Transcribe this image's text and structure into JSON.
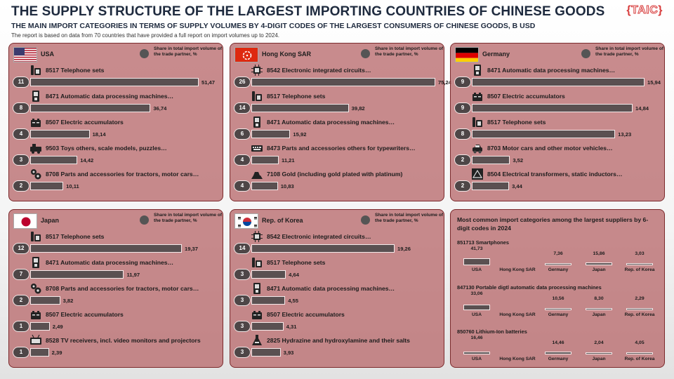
{
  "header": {
    "title": "THE SUPPLY STRUCTURE OF THE LARGEST IMPORTING COUNTRIES OF CHINESE GOODS",
    "subtitle": "THE MAIN IMPORT CATEGORIES IN TERMS OF SUPPLY VOLUMES BY 4-DIGIT CODES OF THE LARGEST CONSUMERS OF CHINESE GOODS, B USD",
    "note": "The report is based on data from 70 countries that have provided a full report on import volumes up to 2024.",
    "logo_left": "{",
    "logo_text": "TAIC",
    "logo_right": "}"
  },
  "legend_text": "Share in total import volume of the trade partner, %",
  "colors": {
    "panel": "#BA6E70",
    "bar": "#5A5051",
    "badge": "#4E4647",
    "title": "#1E2A3E",
    "logo": "#D73A3A"
  },
  "chart_data": [
    {
      "type": "bar",
      "country": "USA",
      "flag": "usa-flag-icon",
      "categories": [
        "8517 Telephone sets",
        "8471 Automatic data processing machines…",
        "8507 Electric accumulators",
        "9503 Toys others, scale models, puzzles…",
        "8708 Parts and accessories for tractors, motor cars…"
      ],
      "values": [
        51.47,
        36.74,
        18.14,
        14.42,
        10.11
      ],
      "labels": [
        "51,47",
        "36,74",
        "18,14",
        "14,42",
        "10,11"
      ],
      "share": [
        "11",
        "8",
        "4",
        "3",
        "2"
      ],
      "icons": [
        "telephone-icon",
        "computer-icon",
        "battery-icon",
        "toys-icon",
        "gears-icon"
      ]
    },
    {
      "type": "bar",
      "country": "Hong Kong SAR",
      "flag": "hongkong-flag-icon",
      "categories": [
        "8542 Electronic integrated circuits…",
        "8517 Telephone sets",
        "8471 Automatic data processing machines…",
        "8473 Parts and accessories others for typewriters…",
        "7108 Gold (including gold plated with platinum)"
      ],
      "values": [
        75.24,
        39.82,
        15.92,
        11.21,
        10.83
      ],
      "labels": [
        "75,24",
        "39,82",
        "15,92",
        "11,21",
        "10,83"
      ],
      "share": [
        "26",
        "14",
        "6",
        "4",
        "4"
      ],
      "icons": [
        "chip-icon",
        "telephone-icon",
        "computer-icon",
        "keyboard-icon",
        "gold-bars-icon"
      ]
    },
    {
      "type": "bar",
      "country": "Germany",
      "flag": "germany-flag-icon",
      "categories": [
        "8471 Automatic data processing machines…",
        "8507 Electric accumulators",
        "8517 Telephone sets",
        "8703 Motor cars and other motor vehicles…",
        "8504 Electrical transformers, static inductors…"
      ],
      "values": [
        15.94,
        14.84,
        13.23,
        3.52,
        3.44
      ],
      "labels": [
        "15,94",
        "14,84",
        "13,23",
        "3,52",
        "3,44"
      ],
      "share": [
        "9",
        "9",
        "8",
        "2",
        "2"
      ],
      "icons": [
        "computer-icon",
        "battery-icon",
        "telephone-icon",
        "car-icon",
        "transformer-icon"
      ]
    },
    {
      "type": "bar",
      "country": "Japan",
      "flag": "japan-flag-icon",
      "categories": [
        "8517 Telephone sets",
        "8471 Automatic data processing machines…",
        "8708 Parts and accessories for tractors, motor cars…",
        "8507 Electric accumulators",
        "8528 TV receivers, incl. video monitors and projectors"
      ],
      "values": [
        19.37,
        11.97,
        3.82,
        2.49,
        2.39
      ],
      "labels": [
        "19,37",
        "11,97",
        "3,82",
        "2,49",
        "2,39"
      ],
      "share": [
        "12",
        "7",
        "2",
        "1",
        "1"
      ],
      "icons": [
        "telephone-icon",
        "computer-icon",
        "gears-icon",
        "battery-icon",
        "tv-icon"
      ]
    },
    {
      "type": "bar",
      "country": "Rep. of Korea",
      "flag": "korea-flag-icon",
      "categories": [
        "8542 Electronic integrated circuits…",
        "8517 Telephone sets",
        "8471 Automatic data processing machines…",
        "8507 Electric accumulators",
        "2825 Hydrazine and hydroxylamine and their salts"
      ],
      "values": [
        19.26,
        4.64,
        4.55,
        4.31,
        3.93
      ],
      "labels": [
        "19,26",
        "4,64",
        "4,55",
        "4,31",
        "3,93"
      ],
      "share": [
        "14",
        "3",
        "3",
        "3",
        "3"
      ],
      "icons": [
        "chip-icon",
        "telephone-icon",
        "computer-icon",
        "battery-icon",
        "flask-icon"
      ]
    },
    {
      "type": "bar",
      "title": "Most common import categories among the largest suppliers by 6-digit codes in 2024",
      "categories": [
        "USA",
        "Hong Kong SAR",
        "Germany",
        "Japan",
        "Rep. of Korea"
      ],
      "groups": [
        {
          "name": "851713 Smartphones",
          "values": [
            41.73,
            null,
            7.36,
            15.86,
            3.03
          ],
          "labels": [
            "41,73",
            "",
            "7,36",
            "15,86",
            "3,03"
          ]
        },
        {
          "name": "847130 Portable digtl automatic data processing machines",
          "values": [
            33.06,
            null,
            10.56,
            8.3,
            2.29
          ],
          "labels": [
            "33,06",
            "",
            "10,56",
            "8,30",
            "2,29"
          ]
        },
        {
          "name": "850760 Lithium-Ion batteries",
          "values": [
            16.46,
            null,
            14.46,
            2.04,
            4.05
          ],
          "labels": [
            "16,46",
            "",
            "14,46",
            "2,04",
            "4,05"
          ]
        }
      ]
    }
  ]
}
